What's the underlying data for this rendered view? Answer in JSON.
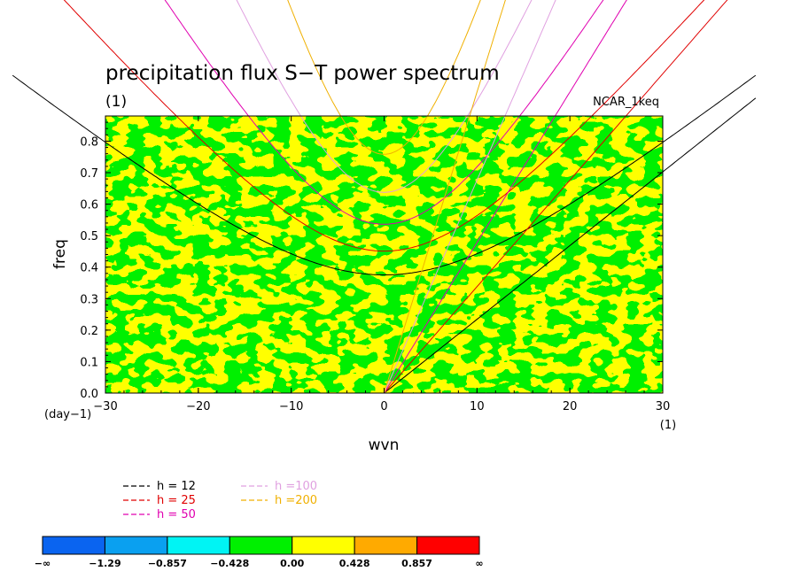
{
  "chart_data": {
    "type": "heatmap",
    "title": "precipitation flux S−T power spectrum",
    "units_label": "(1)",
    "experiment": "NCAR_1keq",
    "xlabel": "wvn",
    "ylabel": "freq",
    "x_unit": "(1)",
    "y_unit": "(day−1)",
    "xlim": [
      -30,
      30
    ],
    "ylim": [
      0.0,
      0.88
    ],
    "x_ticks": [
      -30,
      -20,
      -10,
      0,
      10,
      20,
      30
    ],
    "x_tick_labels": [
      "−30",
      "−20",
      "−10",
      "0",
      "10",
      "20",
      "30"
    ],
    "y_ticks": [
      0.0,
      0.1,
      0.2,
      0.3,
      0.4,
      0.5,
      0.6,
      0.7,
      0.8
    ],
    "y_tick_labels": [
      "0.0",
      "0.1",
      "0.2",
      "0.3",
      "0.4",
      "0.5",
      "0.6",
      "0.7",
      "0.8"
    ],
    "field": {
      "description": "noisy field, mostly near 0 (yellow) with patches between -0.428 and 0 (green)",
      "dominant_levels": [
        "0.00 to 0.428",
        "-0.428 to 0.00"
      ]
    },
    "colorbar": {
      "labels": [
        "−∞",
        "−1.29",
        "−0.857",
        "−0.428",
        "0.00",
        "0.428",
        "0.857",
        "∞"
      ],
      "colors": [
        "#0a64f0",
        "#0aa0f0",
        "#00f4f4",
        "#00f000",
        "#ffff00",
        "#ffaa00",
        "#ff0000"
      ]
    },
    "series": [
      {
        "name": "h = 12",
        "equivalent_depth_m": 12,
        "color": "#000000"
      },
      {
        "name": "h = 25",
        "equivalent_depth_m": 25,
        "color": "#e00000"
      },
      {
        "name": "h = 50",
        "equivalent_depth_m": 50,
        "color": "#e000b0"
      },
      {
        "name": "h =100",
        "equivalent_depth_m": 100,
        "color": "#e0a0e0"
      },
      {
        "name": "h =200",
        "equivalent_depth_m": 200,
        "color": "#f0b000"
      }
    ]
  }
}
